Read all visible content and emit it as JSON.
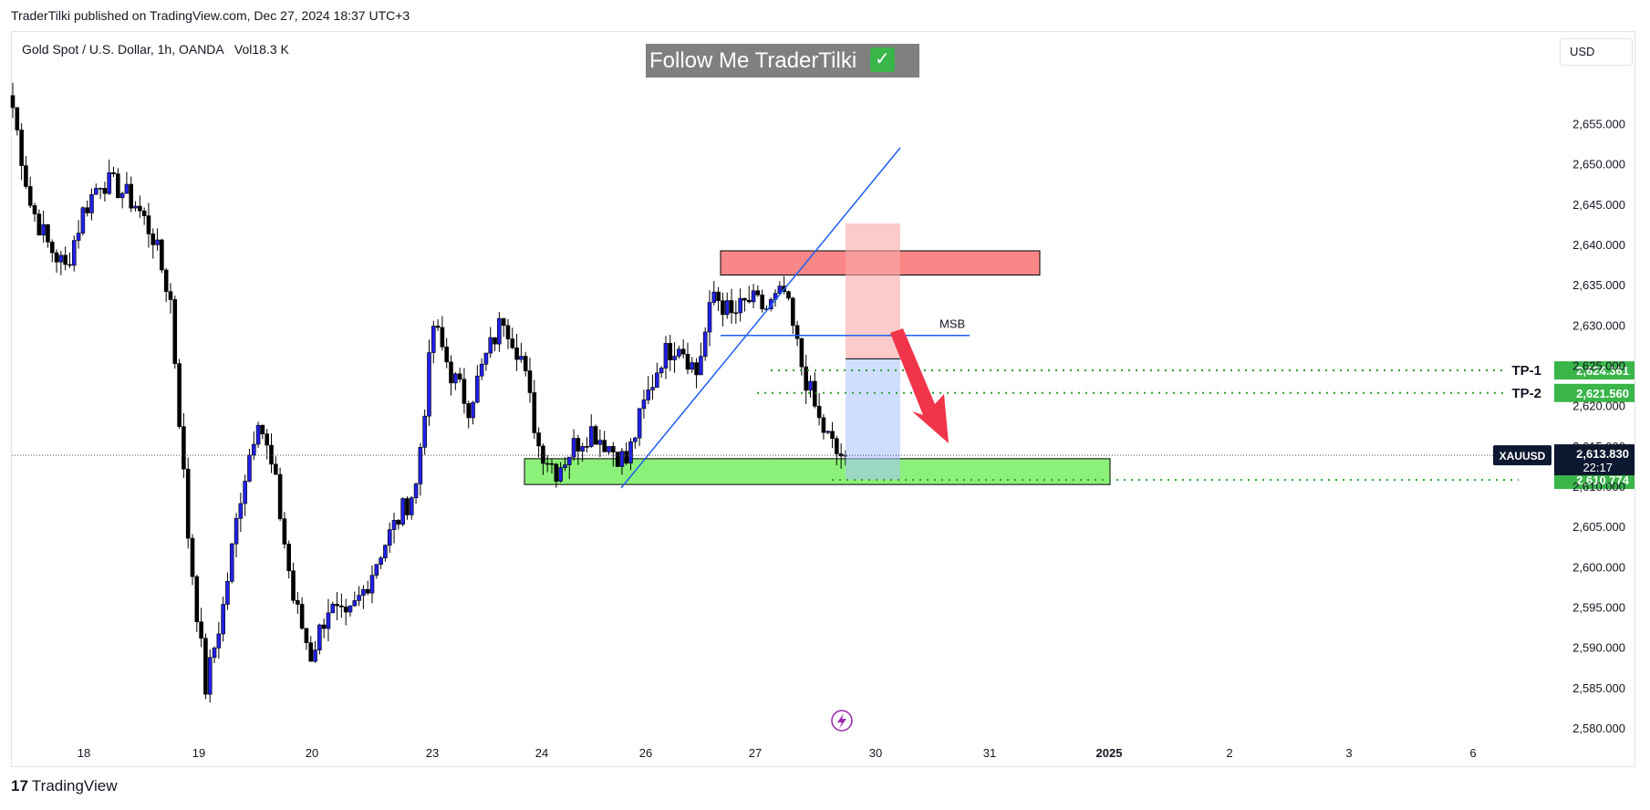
{
  "header": {
    "published_line": "TraderTilki published on TradingView.com, Dec 27, 2024 18:37 UTC+3"
  },
  "symbol": {
    "description": "Gold Spot / U.S. Dollar, 1h, OANDA",
    "volume_label": "Vol",
    "volume_value": "18.3 K"
  },
  "badge": {
    "text": "Follow Me TraderTilki",
    "check": "✓"
  },
  "currency_button": "USD",
  "footer": {
    "logo_glyph": "17",
    "brand": "TradingView"
  },
  "colors": {
    "bull": "#2121e6",
    "bear": "#000000",
    "resistance_zone": "#f87272",
    "support_zone": "#7fef6a",
    "trendline": "#1e5ef2",
    "tp_dotted": "#2ea02e",
    "arrow": "#f0344a",
    "price_badge_green": "#3ab54a",
    "current_price_badge": "#0c1830"
  },
  "chart_data": {
    "type": "candlestick",
    "instrument": "XAUUSD",
    "timeframe": "1h",
    "ylim": [
      2577.5,
      2661.5
    ],
    "yticks": [
      2655,
      2650,
      2645,
      2640,
      2635,
      2630,
      2625,
      2620,
      2615,
      2610,
      2605,
      2600,
      2595,
      2590,
      2585,
      2580
    ],
    "ytick_labels": [
      "2,655.000",
      "2,650.000",
      "2,645.000",
      "2,640.000",
      "2,635.000",
      "2,630.000",
      "2,625.000",
      "2,620.000",
      "2,615.000",
      "2,610.000",
      "2,605.000",
      "2,600.000",
      "2,595.000",
      "2,590.000",
      "2,585.000",
      "2,580.000"
    ],
    "x_ticks": [
      {
        "label": "18",
        "day": 18
      },
      {
        "label": "19",
        "day": 19
      },
      {
        "label": "20",
        "day": 20
      },
      {
        "label": "23",
        "day": 23
      },
      {
        "label": "24",
        "day": 24
      },
      {
        "label": "26",
        "day": 26
      },
      {
        "label": "27",
        "day": 27
      },
      {
        "label": "30",
        "day": 30
      },
      {
        "label": "31",
        "day": 31
      },
      {
        "label": "2025",
        "day": 32,
        "bold": true
      },
      {
        "label": "2",
        "day": 33
      },
      {
        "label": "3",
        "day": 34
      },
      {
        "label": "6",
        "day": 35
      }
    ],
    "last_price": 2613.83,
    "last_price_label": "2,613.830",
    "countdown": "22:17",
    "symbol_tag": "XAUUSD",
    "path_points": [
      [
        0,
        2657
      ],
      [
        2,
        2645
      ],
      [
        4,
        2640
      ],
      [
        6,
        2637
      ],
      [
        8,
        2644
      ],
      [
        10,
        2648
      ],
      [
        12,
        2647
      ],
      [
        14,
        2645
      ],
      [
        16,
        2641
      ],
      [
        18,
        2633
      ],
      [
        20,
        2604
      ],
      [
        22,
        2585
      ],
      [
        24,
        2595
      ],
      [
        26,
        2609
      ],
      [
        28,
        2619
      ],
      [
        30,
        2610
      ],
      [
        32,
        2596
      ],
      [
        34,
        2589
      ],
      [
        36,
        2595
      ],
      [
        38,
        2593
      ],
      [
        40,
        2597
      ],
      [
        42,
        2602
      ],
      [
        44,
        2606
      ],
      [
        46,
        2610
      ],
      [
        48,
        2630
      ],
      [
        50,
        2624
      ],
      [
        52,
        2620
      ],
      [
        54,
        2626
      ],
      [
        56,
        2631
      ],
      [
        58,
        2626
      ],
      [
        60,
        2615
      ],
      [
        62,
        2612
      ],
      [
        64,
        2615
      ],
      [
        66,
        2617
      ],
      [
        68,
        2615
      ],
      [
        70,
        2613
      ],
      [
        72,
        2620
      ],
      [
        74,
        2626
      ],
      [
        76,
        2628
      ],
      [
        78,
        2624
      ],
      [
        80,
        2634
      ],
      [
        82,
        2631
      ],
      [
        84,
        2633
      ],
      [
        86,
        2632
      ],
      [
        88,
        2634
      ],
      [
        90,
        2625
      ],
      [
        92,
        2618
      ],
      [
        94,
        2614
      ],
      [
        95,
        2613.83
      ]
    ],
    "annotations": {
      "resistance_zone": {
        "from": 2639.2,
        "to": 2636.2
      },
      "support_zone": {
        "from": 2613.4,
        "to": 2610.2
      },
      "msb_level": 2628.7,
      "msb_label": "MSB",
      "short_position": {
        "entry": 2625.8,
        "stop": 2642.6,
        "target": 2610.8
      },
      "targets": [
        {
          "label": "TP-1",
          "price": 2624.361,
          "price_label": "2,624.361"
        },
        {
          "label": "TP-2",
          "price": 2621.56,
          "price_label": "2,621.560"
        }
      ],
      "final_target": {
        "price": 2610.774,
        "price_label": "2,610.774"
      }
    }
  }
}
